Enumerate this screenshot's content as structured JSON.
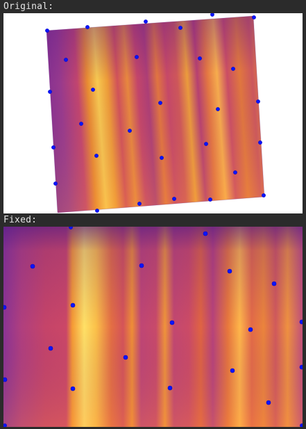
{
  "labels": {
    "original": "Original:",
    "fixed": "Fixed:"
  },
  "colors": {
    "background": "#2b2b2b",
    "label_text": "#e6e6e6",
    "marker": "#0a14ff",
    "heatmap_low": "#7a2b93",
    "heatmap_mid": "#e6574e",
    "heatmap_high": "#fff27a"
  },
  "icons": {
    "marker": "blue-dot-marker"
  }
}
